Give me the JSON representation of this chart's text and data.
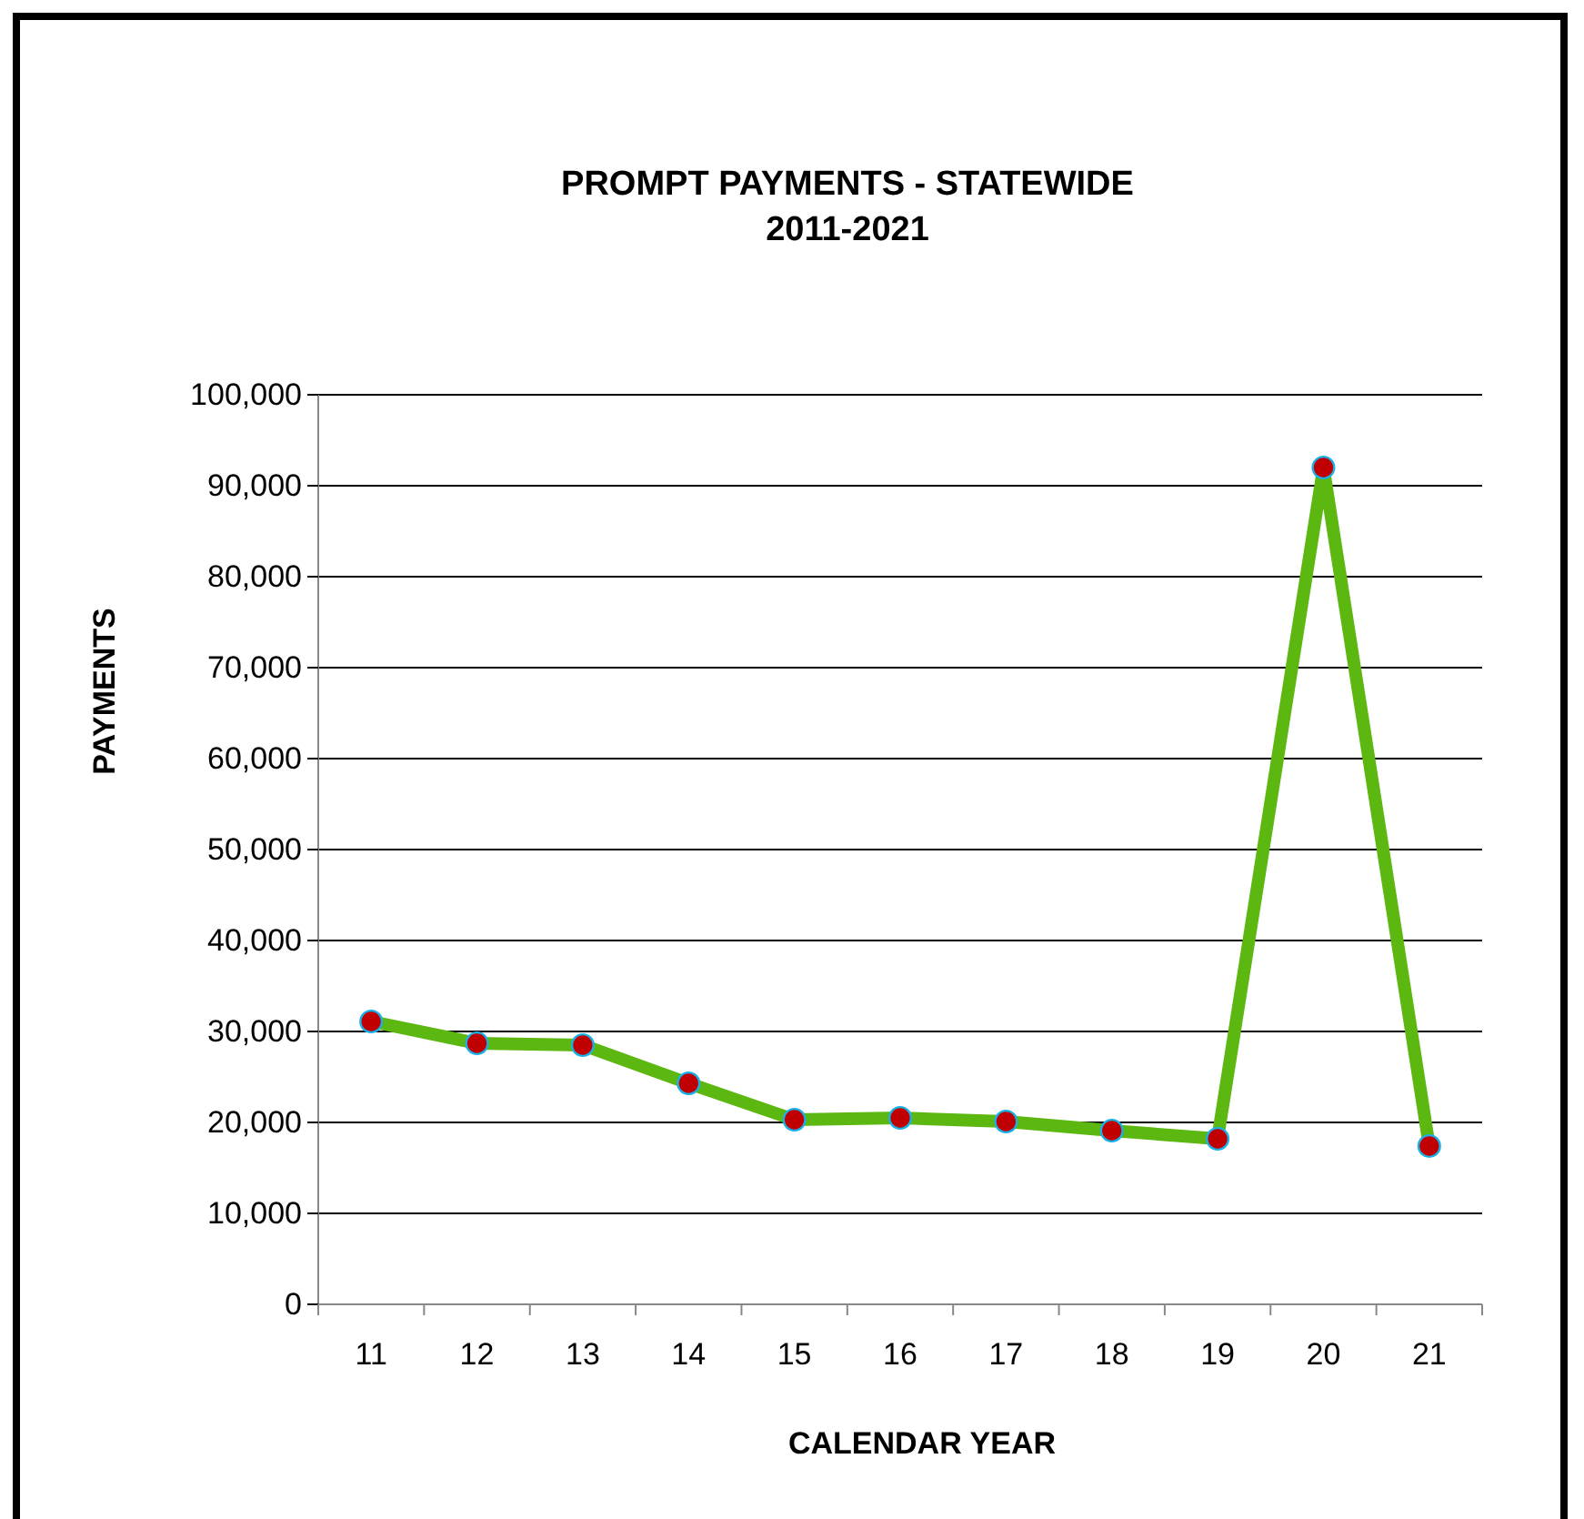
{
  "chart_data": {
    "type": "line",
    "title": "PROMPT PAYMENTS - STATEWIDE\n2011-2021",
    "xlabel": "CALENDAR YEAR",
    "ylabel": "PAYMENTS",
    "categories": [
      "11",
      "12",
      "13",
      "14",
      "15",
      "16",
      "17",
      "18",
      "19",
      "20",
      "21"
    ],
    "series": [
      {
        "color": "#5cb811",
        "values": [
          31100,
          28700,
          28500,
          24300,
          20300,
          20500,
          20100,
          19100,
          18200,
          92000,
          17400
        ]
      }
    ],
    "ylim": [
      0,
      100000
    ],
    "yticks": [
      {
        "value": 0,
        "label": "0"
      },
      {
        "value": 10000,
        "label": "10,000"
      },
      {
        "value": 20000,
        "label": "20,000"
      },
      {
        "value": 30000,
        "label": "30,000"
      },
      {
        "value": 40000,
        "label": "40,000"
      },
      {
        "value": 50000,
        "label": "50,000"
      },
      {
        "value": 60000,
        "label": "60,000"
      },
      {
        "value": 70000,
        "label": "70,000"
      },
      {
        "value": 80000,
        "label": "80,000"
      },
      {
        "value": 90000,
        "label": "90,000"
      },
      {
        "value": 100000,
        "label": "100,000"
      }
    ],
    "grid": "y",
    "marker": "circle"
  }
}
